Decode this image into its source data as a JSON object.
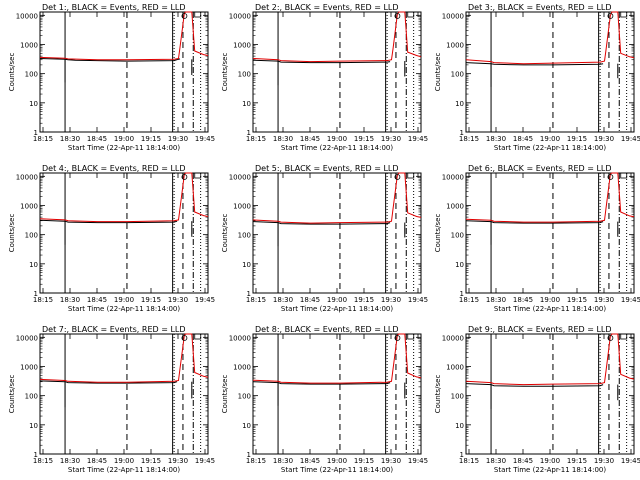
{
  "figure": {
    "xlabel": "Start Time (22-Apr-11 18:14:00)",
    "ylabel": "Counts/sec",
    "xticks": [
      "18:15",
      "18:30",
      "18:45",
      "19:00",
      "19:15",
      "19:30",
      "19:45"
    ],
    "yticks": [
      "1",
      "10",
      "100",
      "1000",
      "10000"
    ],
    "colors": {
      "events": "#000000",
      "lld": "#e00000",
      "axis": "#000000"
    }
  },
  "chart_data": [
    {
      "type": "line",
      "title": "Det 1:, BLACK = Events, RED = LLD",
      "x_range_min": [
        1,
        115
      ],
      "ylim": [
        1,
        13000
      ],
      "yscale": "log",
      "series": [
        {
          "name": "Events",
          "x": [
            1,
            18,
            20,
            25,
            40,
            60,
            92,
            94,
            96
          ],
          "values": [
            330,
            310,
            300,
            290,
            280,
            270,
            280,
            300,
            320
          ]
        },
        {
          "name": "LLD",
          "x": [
            1,
            18,
            20,
            40,
            60,
            92,
            95,
            96,
            99,
            100,
            104,
            106,
            112,
            115
          ],
          "values": [
            360,
            340,
            320,
            300,
            300,
            310,
            330,
            800,
            12000,
            13000,
            13000,
            600,
            450,
            420
          ]
        }
      ],
      "vlines": {
        "solid": [
          18,
          91
        ],
        "dashed": [
          60,
          98
        ],
        "dashdot": [
          105
        ],
        "dotted": [
          92,
          110
        ]
      },
      "drops": [
        {
          "x": 18,
          "y": 50
        },
        {
          "x": 104,
          "y": 90
        }
      ]
    },
    {
      "type": "line",
      "title": "Det 2:, BLACK = Events, RED = LLD",
      "x_range_min": [
        1,
        115
      ],
      "ylim": [
        1,
        13000
      ],
      "yscale": "log",
      "series": [
        {
          "name": "Events",
          "x": [
            1,
            18,
            20,
            40,
            60,
            92,
            94
          ],
          "values": [
            290,
            270,
            250,
            240,
            240,
            250,
            260
          ]
        },
        {
          "name": "LLD",
          "x": [
            1,
            18,
            20,
            40,
            60,
            92,
            95,
            96,
            99,
            100,
            104,
            106,
            112,
            115
          ],
          "values": [
            330,
            300,
            280,
            260,
            270,
            280,
            300,
            700,
            11000,
            13000,
            13000,
            550,
            420,
            380
          ]
        }
      ],
      "vlines": {
        "solid": [
          18,
          91
        ],
        "dashed": [
          60,
          98
        ],
        "dashdot": [
          105
        ],
        "dotted": [
          92,
          110
        ]
      },
      "drops": [
        {
          "x": 18,
          "y": 40
        },
        {
          "x": 104,
          "y": 80
        }
      ]
    },
    {
      "type": "line",
      "title": "Det 3:, BLACK = Events, RED = LLD",
      "x_range_min": [
        1,
        115
      ],
      "ylim": [
        1,
        13000
      ],
      "yscale": "log",
      "series": [
        {
          "name": "Events",
          "x": [
            1,
            18,
            20,
            40,
            60,
            92,
            94
          ],
          "values": [
            240,
            220,
            210,
            200,
            200,
            210,
            220
          ]
        },
        {
          "name": "LLD",
          "x": [
            1,
            18,
            20,
            40,
            60,
            92,
            95,
            96,
            99,
            100,
            104,
            106,
            112,
            115
          ],
          "values": [
            300,
            260,
            240,
            220,
            230,
            250,
            270,
            650,
            10000,
            13000,
            13000,
            500,
            380,
            350
          ]
        }
      ],
      "vlines": {
        "solid": [
          18,
          91
        ],
        "dashed": [
          60,
          98
        ],
        "dashdot": [
          105
        ],
        "dotted": [
          92,
          110
        ]
      },
      "drops": [
        {
          "x": 18,
          "y": 35
        },
        {
          "x": 104,
          "y": 70
        }
      ]
    },
    {
      "type": "line",
      "title": "Det 4:, BLACK = Events, RED = LLD",
      "x_range_min": [
        1,
        115
      ],
      "ylim": [
        1,
        13000
      ],
      "yscale": "log",
      "series": [
        {
          "name": "Events",
          "x": [
            1,
            18,
            20,
            40,
            60,
            92,
            94
          ],
          "values": [
            310,
            290,
            270,
            260,
            260,
            270,
            290
          ]
        },
        {
          "name": "LLD",
          "x": [
            1,
            18,
            20,
            40,
            60,
            92,
            95,
            96,
            99,
            100,
            104,
            106,
            112,
            115
          ],
          "values": [
            350,
            320,
            300,
            280,
            280,
            300,
            320,
            800,
            12000,
            13000,
            13000,
            600,
            450,
            420
          ]
        }
      ],
      "vlines": {
        "solid": [
          18,
          91
        ],
        "dashed": [
          60,
          98
        ],
        "dashdot": [
          105
        ],
        "dotted": [
          92,
          110
        ]
      },
      "drops": [
        {
          "x": 18,
          "y": 45
        },
        {
          "x": 104,
          "y": 85
        }
      ]
    },
    {
      "type": "line",
      "title": "Det 5:, BLACK = Events, RED = LLD",
      "x_range_min": [
        1,
        115
      ],
      "ylim": [
        1,
        13000
      ],
      "yscale": "log",
      "series": [
        {
          "name": "Events",
          "x": [
            1,
            18,
            20,
            40,
            60,
            92,
            94
          ],
          "values": [
            280,
            260,
            240,
            230,
            230,
            240,
            260
          ]
        },
        {
          "name": "LLD",
          "x": [
            1,
            18,
            20,
            40,
            60,
            92,
            95,
            96,
            99,
            100,
            104,
            106,
            112,
            115
          ],
          "values": [
            320,
            290,
            270,
            250,
            260,
            270,
            290,
            750,
            11000,
            13000,
            13000,
            560,
            420,
            390
          ]
        }
      ],
      "vlines": {
        "solid": [
          18,
          91
        ],
        "dashed": [
          60,
          98
        ],
        "dashdot": [
          105
        ],
        "dotted": [
          92,
          110
        ]
      },
      "drops": [
        {
          "x": 18,
          "y": 40
        },
        {
          "x": 104,
          "y": 80
        }
      ]
    },
    {
      "type": "line",
      "title": "Det 6:, BLACK = Events, RED = LLD",
      "x_range_min": [
        1,
        115
      ],
      "ylim": [
        1,
        13000
      ],
      "yscale": "log",
      "series": [
        {
          "name": "Events",
          "x": [
            1,
            18,
            20,
            40,
            60,
            92,
            94
          ],
          "values": [
            300,
            280,
            260,
            250,
            250,
            260,
            280
          ]
        },
        {
          "name": "LLD",
          "x": [
            1,
            18,
            20,
            40,
            60,
            92,
            95,
            96,
            99,
            100,
            104,
            106,
            112,
            115
          ],
          "values": [
            340,
            310,
            290,
            270,
            270,
            290,
            310,
            800,
            12000,
            13000,
            13000,
            600,
            440,
            410
          ]
        }
      ],
      "vlines": {
        "solid": [
          18,
          91
        ],
        "dashed": [
          60,
          98
        ],
        "dashdot": [
          105
        ],
        "dotted": [
          92,
          110
        ]
      },
      "drops": [
        {
          "x": 18,
          "y": 45
        },
        {
          "x": 104,
          "y": 85
        }
      ]
    },
    {
      "type": "line",
      "title": "Det 7:, BLACK = Events, RED = LLD",
      "x_range_min": [
        1,
        115
      ],
      "ylim": [
        1,
        13000
      ],
      "yscale": "log",
      "series": [
        {
          "name": "Events",
          "x": [
            1,
            18,
            20,
            40,
            60,
            92,
            94
          ],
          "values": [
            320,
            300,
            280,
            270,
            270,
            280,
            300
          ]
        },
        {
          "name": "LLD",
          "x": [
            1,
            18,
            20,
            40,
            60,
            92,
            95,
            96,
            99,
            100,
            104,
            106,
            112,
            115
          ],
          "values": [
            360,
            330,
            310,
            290,
            290,
            310,
            330,
            850,
            12000,
            13000,
            13000,
            620,
            460,
            430
          ]
        }
      ],
      "vlines": {
        "solid": [
          18,
          91
        ],
        "dashed": [
          60,
          98
        ],
        "dashdot": [
          105
        ],
        "dotted": [
          92,
          110
        ]
      },
      "drops": [
        {
          "x": 18,
          "y": 40
        },
        {
          "x": 104,
          "y": 80
        }
      ]
    },
    {
      "type": "line",
      "title": "Det 8:, BLACK = Events, RED = LLD",
      "x_range_min": [
        1,
        115
      ],
      "ylim": [
        1,
        13000
      ],
      "yscale": "log",
      "series": [
        {
          "name": "Events",
          "x": [
            1,
            18,
            20,
            40,
            60,
            92,
            94
          ],
          "values": [
            300,
            280,
            260,
            250,
            250,
            260,
            280
          ]
        },
        {
          "name": "LLD",
          "x": [
            1,
            18,
            20,
            40,
            60,
            92,
            95,
            96,
            99,
            100,
            104,
            106,
            112,
            115
          ],
          "values": [
            340,
            310,
            290,
            270,
            270,
            290,
            310,
            800,
            12000,
            13000,
            13000,
            600,
            440,
            410
          ]
        }
      ],
      "vlines": {
        "solid": [
          18,
          91
        ],
        "dashed": [
          60,
          98
        ],
        "dashdot": [
          105
        ],
        "dotted": [
          92,
          110
        ]
      },
      "drops": [
        {
          "x": 18,
          "y": 45
        },
        {
          "x": 104,
          "y": 80
        }
      ]
    },
    {
      "type": "line",
      "title": "Det 9:, BLACK = Events, RED = LLD",
      "x_range_min": [
        1,
        115
      ],
      "ylim": [
        1,
        13000
      ],
      "yscale": "log",
      "series": [
        {
          "name": "Events",
          "x": [
            1,
            18,
            20,
            40,
            60,
            92,
            94
          ],
          "values": [
            260,
            240,
            220,
            210,
            210,
            220,
            240
          ]
        },
        {
          "name": "LLD",
          "x": [
            1,
            18,
            20,
            40,
            60,
            92,
            95,
            96,
            99,
            100,
            104,
            106,
            112,
            115
          ],
          "values": [
            310,
            280,
            260,
            240,
            250,
            260,
            280,
            700,
            11000,
            13000,
            13000,
            540,
            400,
            370
          ]
        }
      ],
      "vlines": {
        "solid": [
          18,
          91
        ],
        "dashed": [
          60,
          98
        ],
        "dashdot": [
          105
        ],
        "dotted": [
          92,
          110
        ]
      },
      "drops": [
        {
          "x": 18,
          "y": 35
        },
        {
          "x": 104,
          "y": 70
        }
      ]
    }
  ]
}
